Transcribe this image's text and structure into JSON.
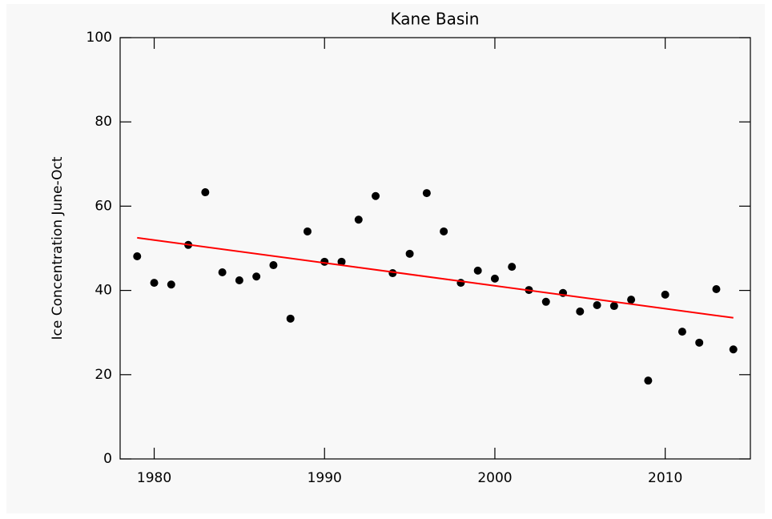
{
  "chart_data": {
    "type": "scatter",
    "title": "Kane Basin",
    "y_label": "Ice Concentration June-Oct",
    "x": [
      1979,
      1980,
      1981,
      1982,
      1983,
      1984,
      1985,
      1986,
      1987,
      1988,
      1989,
      1990,
      1991,
      1992,
      1993,
      1994,
      1995,
      1996,
      1997,
      1998,
      1999,
      2000,
      2001,
      2002,
      2003,
      2004,
      2005,
      2006,
      2007,
      2008,
      2009,
      2010,
      2011,
      2012,
      2013,
      2014
    ],
    "values": [
      48.1,
      41.8,
      41.4,
      50.8,
      63.3,
      44.3,
      42.4,
      43.3,
      46.0,
      33.3,
      54.0,
      46.8,
      46.8,
      56.8,
      62.4,
      44.1,
      48.7,
      63.1,
      54.0,
      41.8,
      44.7,
      42.8,
      45.6,
      40.1,
      37.3,
      39.4,
      35.0,
      36.5,
      36.3,
      37.8,
      18.6,
      39.0,
      30.2,
      27.6,
      40.3,
      26.0
    ],
    "color": "#000000",
    "trend": {
      "x": [
        1979,
        2014
      ],
      "values": [
        52.5,
        33.5
      ],
      "color": "#ff0000"
    },
    "xlim": [
      1978,
      2015
    ],
    "xticks": [
      1980,
      1990,
      2000,
      2010
    ],
    "ylim": [
      0,
      100
    ],
    "yticks": [
      0,
      20,
      40,
      60,
      80,
      100
    ]
  }
}
